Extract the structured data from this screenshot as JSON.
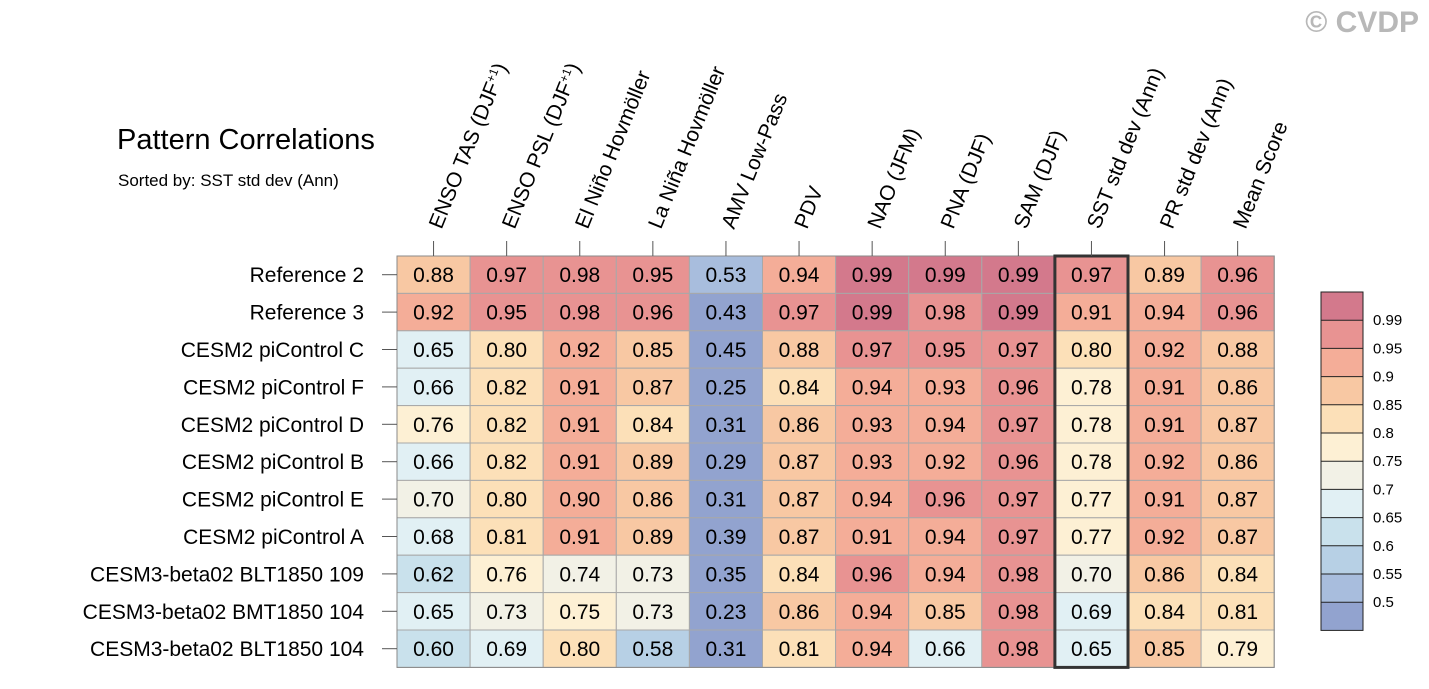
{
  "watermark": "© CVDP",
  "chart_data": {
    "type": "heatmap",
    "title": "Pattern Correlations",
    "subtitle": "Sorted by: SST std dev (Ann)",
    "highlight_column": "SST std dev (Ann)",
    "columns": [
      {
        "label": "ENSO TAS (DJF",
        "sup": "+1",
        "close": ")"
      },
      {
        "label": "ENSO PSL (DJF",
        "sup": "+1",
        "close": ")"
      },
      {
        "label": "El Niño Hovmöller"
      },
      {
        "label": "La Niña Hovmöller"
      },
      {
        "label": "AMV Low-Pass"
      },
      {
        "label": "PDV"
      },
      {
        "label": "NAO (JFM)"
      },
      {
        "label": "PNA (DJF)"
      },
      {
        "label": "SAM (DJF)"
      },
      {
        "label": "SST std dev (Ann)"
      },
      {
        "label": "PR std dev (Ann)"
      },
      {
        "label": "Mean Score"
      }
    ],
    "rows": [
      {
        "label": "Reference 2",
        "values": [
          "0.88",
          "0.97",
          "0.98",
          "0.95",
          "0.53",
          "0.94",
          "0.99",
          "0.99",
          "0.99",
          "0.97",
          "0.89",
          "0.96"
        ]
      },
      {
        "label": "Reference 3",
        "values": [
          "0.92",
          "0.95",
          "0.98",
          "0.96",
          "0.43",
          "0.97",
          "0.99",
          "0.98",
          "0.99",
          "0.91",
          "0.94",
          "0.96"
        ]
      },
      {
        "label": "CESM2 piControl C",
        "values": [
          "0.65",
          "0.80",
          "0.92",
          "0.85",
          "0.45",
          "0.88",
          "0.97",
          "0.95",
          "0.97",
          "0.80",
          "0.92",
          "0.88"
        ]
      },
      {
        "label": "CESM2 piControl F",
        "values": [
          "0.66",
          "0.82",
          "0.91",
          "0.87",
          "0.25",
          "0.84",
          "0.94",
          "0.93",
          "0.96",
          "0.78",
          "0.91",
          "0.86"
        ]
      },
      {
        "label": "CESM2 piControl D",
        "values": [
          "0.76",
          "0.82",
          "0.91",
          "0.84",
          "0.31",
          "0.86",
          "0.93",
          "0.94",
          "0.97",
          "0.78",
          "0.91",
          "0.87"
        ]
      },
      {
        "label": "CESM2 piControl B",
        "values": [
          "0.66",
          "0.82",
          "0.91",
          "0.89",
          "0.29",
          "0.87",
          "0.93",
          "0.92",
          "0.96",
          "0.78",
          "0.92",
          "0.86"
        ]
      },
      {
        "label": "CESM2 piControl E",
        "values": [
          "0.70",
          "0.80",
          "0.90",
          "0.86",
          "0.31",
          "0.87",
          "0.94",
          "0.96",
          "0.97",
          "0.77",
          "0.91",
          "0.87"
        ]
      },
      {
        "label": "CESM2 piControl A",
        "values": [
          "0.68",
          "0.81",
          "0.91",
          "0.89",
          "0.39",
          "0.87",
          "0.91",
          "0.94",
          "0.97",
          "0.77",
          "0.92",
          "0.87"
        ]
      },
      {
        "label": "CESM3-beta02 BLT1850 109",
        "values": [
          "0.62",
          "0.76",
          "0.74",
          "0.73",
          "0.35",
          "0.84",
          "0.96",
          "0.94",
          "0.98",
          "0.70",
          "0.86",
          "0.84"
        ]
      },
      {
        "label": "CESM3-beta02 BMT1850 104",
        "values": [
          "0.65",
          "0.73",
          "0.75",
          "0.73",
          "0.23",
          "0.86",
          "0.94",
          "0.85",
          "0.98",
          "0.69",
          "0.84",
          "0.81"
        ]
      },
      {
        "label": "CESM3-beta02 BLT1850 104",
        "values": [
          "0.60",
          "0.69",
          "0.80",
          "0.58",
          "0.31",
          "0.81",
          "0.94",
          "0.66",
          "0.98",
          "0.65",
          "0.85",
          "0.79"
        ]
      }
    ],
    "colorbar": {
      "levels": [
        "0.99",
        "0.95",
        "0.9",
        "0.85",
        "0.8",
        "0.75",
        "0.7",
        "0.65",
        "0.6",
        "0.55",
        "0.5"
      ],
      "thresholds": [
        0.99,
        0.95,
        0.9,
        0.85,
        0.8,
        0.75,
        0.7,
        0.65,
        0.6,
        0.55,
        0.5
      ],
      "colors": [
        "#d3798c",
        "#e89392",
        "#f4ad98",
        "#f8c8a3",
        "#fce0b8",
        "#fdf0d4",
        "#f2f1e6",
        "#e1f0f4",
        "#c9e1ec",
        "#b7d0e5",
        "#a8bddd",
        "#92a3cf"
      ]
    }
  }
}
